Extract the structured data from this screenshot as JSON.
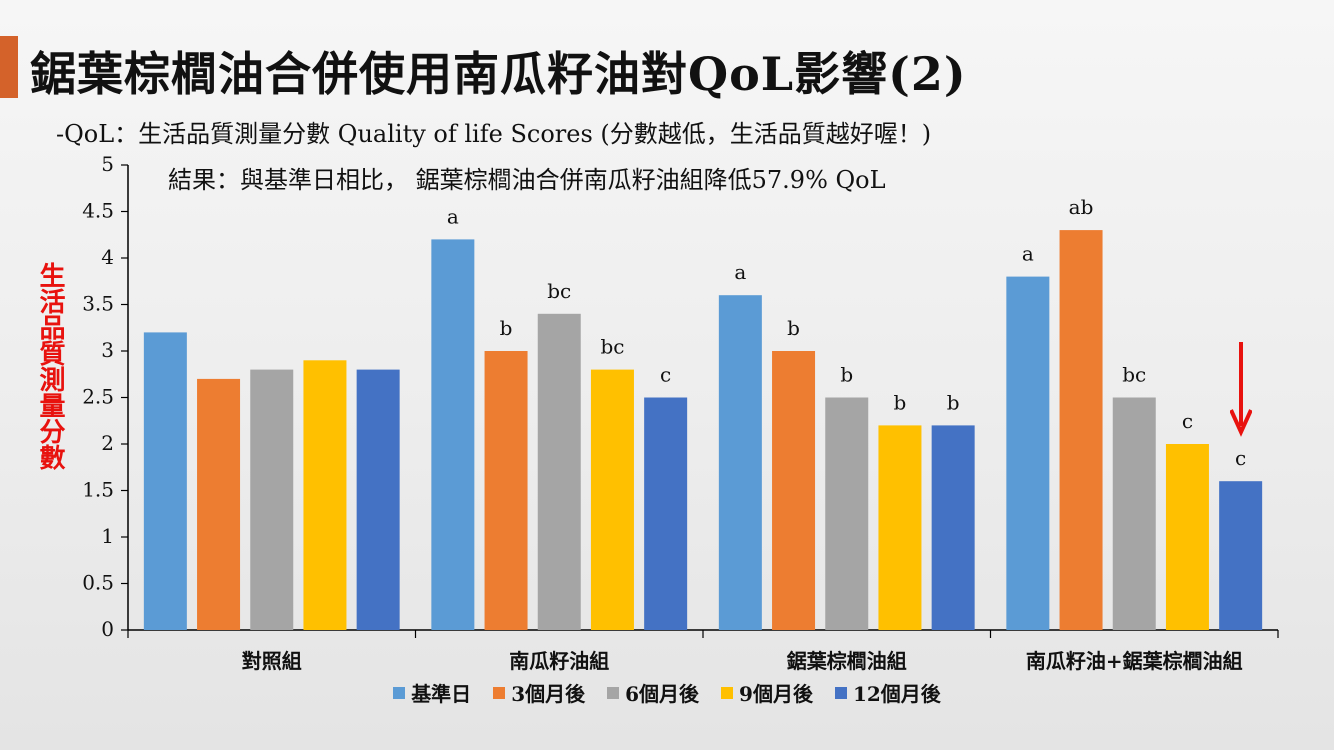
{
  "slide": {
    "title": "鋸葉棕櫚油合併使用南瓜籽油對QoL影響(2)",
    "subtitle": "-QoL：生活品質測量分數 Quality of life Scores (分數越低，生活品質越好喔！)",
    "result": "結果：與基準日相比， 鋸葉棕櫚油合併南瓜籽油組降低57.9% QoL",
    "accent_color": "#d4622a",
    "arrow_color": "#e8120e",
    "arrow_icon": "down-arrow-icon"
  },
  "chart_data": {
    "type": "bar",
    "categories": [
      "對照組",
      "南瓜籽油組",
      "鋸葉棕櫚油組",
      "南瓜籽油+鋸葉棕櫚油組"
    ],
    "ylabel": "生活品質測量分數",
    "ylim": [
      0,
      5
    ],
    "yticks": [
      "0",
      "0.5",
      "1",
      "1.5",
      "2",
      "2.5",
      "3",
      "3.5",
      "4",
      "4.5",
      "5"
    ],
    "grid": false,
    "legend_position": "bottom",
    "series": [
      {
        "name": "基準日",
        "color": "#5b9bd5",
        "values": [
          3.2,
          4.2,
          3.6,
          3.8
        ],
        "labels": [
          "",
          "a",
          "a",
          "a"
        ]
      },
      {
        "name": "3個月後",
        "color": "#ed7d31",
        "values": [
          2.7,
          3.0,
          3.0,
          4.3
        ],
        "labels": [
          "",
          "b",
          "b",
          "ab"
        ]
      },
      {
        "name": "6個月後",
        "color": "#a5a5a5",
        "values": [
          2.8,
          3.4,
          2.5,
          2.5
        ],
        "labels": [
          "",
          "bc",
          "b",
          "bc"
        ]
      },
      {
        "name": "9個月後",
        "color": "#ffc000",
        "values": [
          2.9,
          2.8,
          2.2,
          2.0
        ],
        "labels": [
          "",
          "bc",
          "b",
          "c"
        ]
      },
      {
        "name": "12個月後",
        "color": "#4472c4",
        "values": [
          2.8,
          2.5,
          2.2,
          1.6
        ],
        "labels": [
          "",
          "c",
          "b",
          "c"
        ]
      }
    ]
  }
}
